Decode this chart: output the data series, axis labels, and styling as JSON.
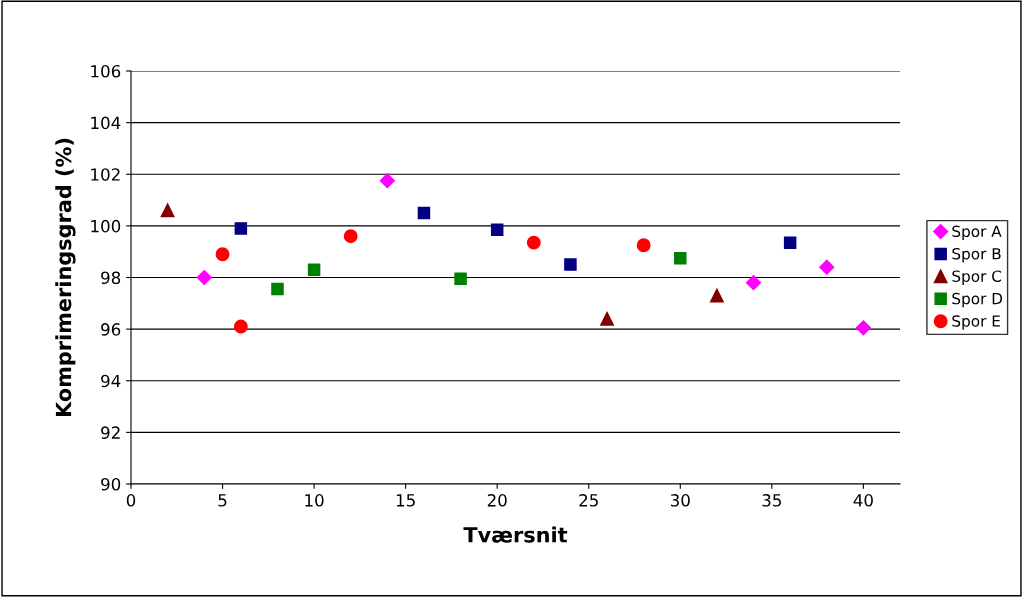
{
  "chart_data": {
    "type": "scatter",
    "xlabel": "Tværsnit",
    "ylabel": "Komprimeringsgrad (%)",
    "xlim": [
      0,
      42
    ],
    "xticks": [
      0,
      5,
      10,
      15,
      20,
      25,
      30,
      35,
      40
    ],
    "ylim": [
      90,
      106
    ],
    "yticks": [
      90,
      92,
      94,
      96,
      98,
      100,
      102,
      104,
      106
    ],
    "grid": "y",
    "legend": "right",
    "series": [
      {
        "name": "Spor A",
        "color": "#ff00ff",
        "marker": "diamond",
        "x": [
          4,
          14,
          34,
          38,
          40
        ],
        "values": [
          98.0,
          101.75,
          97.8,
          98.4,
          96.05
        ]
      },
      {
        "name": "Spor B",
        "color": "#000080",
        "marker": "square",
        "x": [
          6,
          16,
          20,
          24,
          36
        ],
        "values": [
          99.9,
          100.5,
          99.85,
          98.5,
          99.35
        ]
      },
      {
        "name": "Spor C",
        "color": "#800000",
        "marker": "triangle",
        "x": [
          2,
          26,
          32
        ],
        "values": [
          100.6,
          96.4,
          97.3
        ]
      },
      {
        "name": "Spor D",
        "color": "#008000",
        "marker": "square",
        "x": [
          8,
          10,
          18,
          30
        ],
        "values": [
          97.55,
          98.3,
          97.95,
          98.75
        ]
      },
      {
        "name": "Spor E",
        "color": "#ff0000",
        "marker": "circle",
        "x": [
          5,
          6,
          12,
          22,
          28
        ],
        "values": [
          98.9,
          96.1,
          99.6,
          99.35,
          99.25
        ]
      }
    ]
  }
}
